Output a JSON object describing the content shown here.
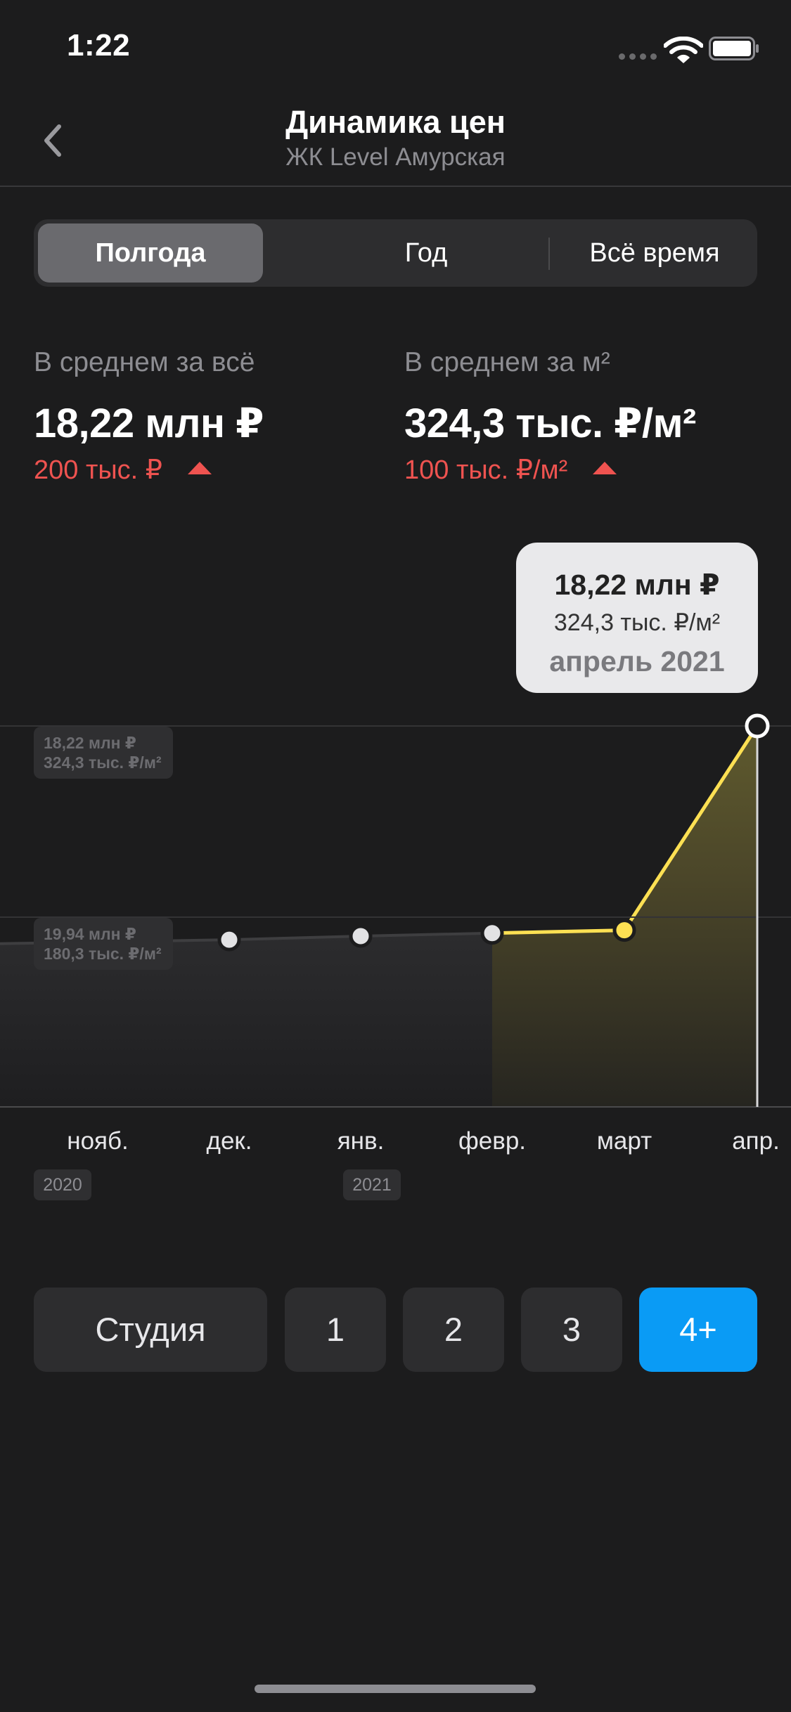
{
  "status_bar": {
    "time": "1:22"
  },
  "nav": {
    "title": "Динамика цен",
    "subtitle": "ЖК Level Амурская",
    "back_icon": "chevron-left-icon"
  },
  "period_tabs": {
    "items": [
      "Полгода",
      "Год",
      "Всё время"
    ],
    "selected": "Полгода"
  },
  "stats": {
    "total": {
      "label": "В среднем за всё",
      "value": "18,22 млн ₽",
      "change": "200 тыс. ₽",
      "trend": "up"
    },
    "per_sqm": {
      "label": "В среднем за м²",
      "value": "324,3 тыс. ₽/м²",
      "change": "100 тыс. ₽/м²",
      "trend": "up"
    }
  },
  "chart": {
    "y_labels": [
      {
        "total": "18,22 млн ₽",
        "per_sqm": "324,3 тыс. ₽/м²"
      },
      {
        "total": "19,94 млн ₽",
        "per_sqm": "180,3 тыс. ₽/м²"
      }
    ],
    "tooltip": {
      "total": "18,22 млн ₽",
      "per_sqm": "324,3 тыс. ₽/м²",
      "date": "апрель 2021"
    },
    "x_labels": [
      "нояб.",
      "дек.",
      "янв.",
      "февр.",
      "март",
      "апр."
    ],
    "years": [
      {
        "label": "2020",
        "month_index": 0
      },
      {
        "label": "2021",
        "month_index": 2
      }
    ]
  },
  "chart_data": {
    "type": "line",
    "categories": [
      "нояб.",
      "дек.",
      "янв.",
      "февр.",
      "март",
      "апр."
    ],
    "series": [
      {
        "values": [
          181.4,
          182.9,
          185.3,
          187.3,
          189.2,
          324.3
        ]
      }
    ],
    "highlight_range": [
      "февр.",
      "апр."
    ],
    "ylim": [
      72.3,
      324.3
    ],
    "grid": true
  },
  "room_filter": {
    "items": [
      "Студия",
      "1",
      "2",
      "3",
      "4+"
    ],
    "selected": "4+"
  },
  "colors": {
    "background": "#1c1c1d",
    "accent_blue": "#0a9bf5",
    "line_yellow": "#fde053",
    "trend_red": "#ef5350",
    "muted_text": "#8d8d92"
  }
}
